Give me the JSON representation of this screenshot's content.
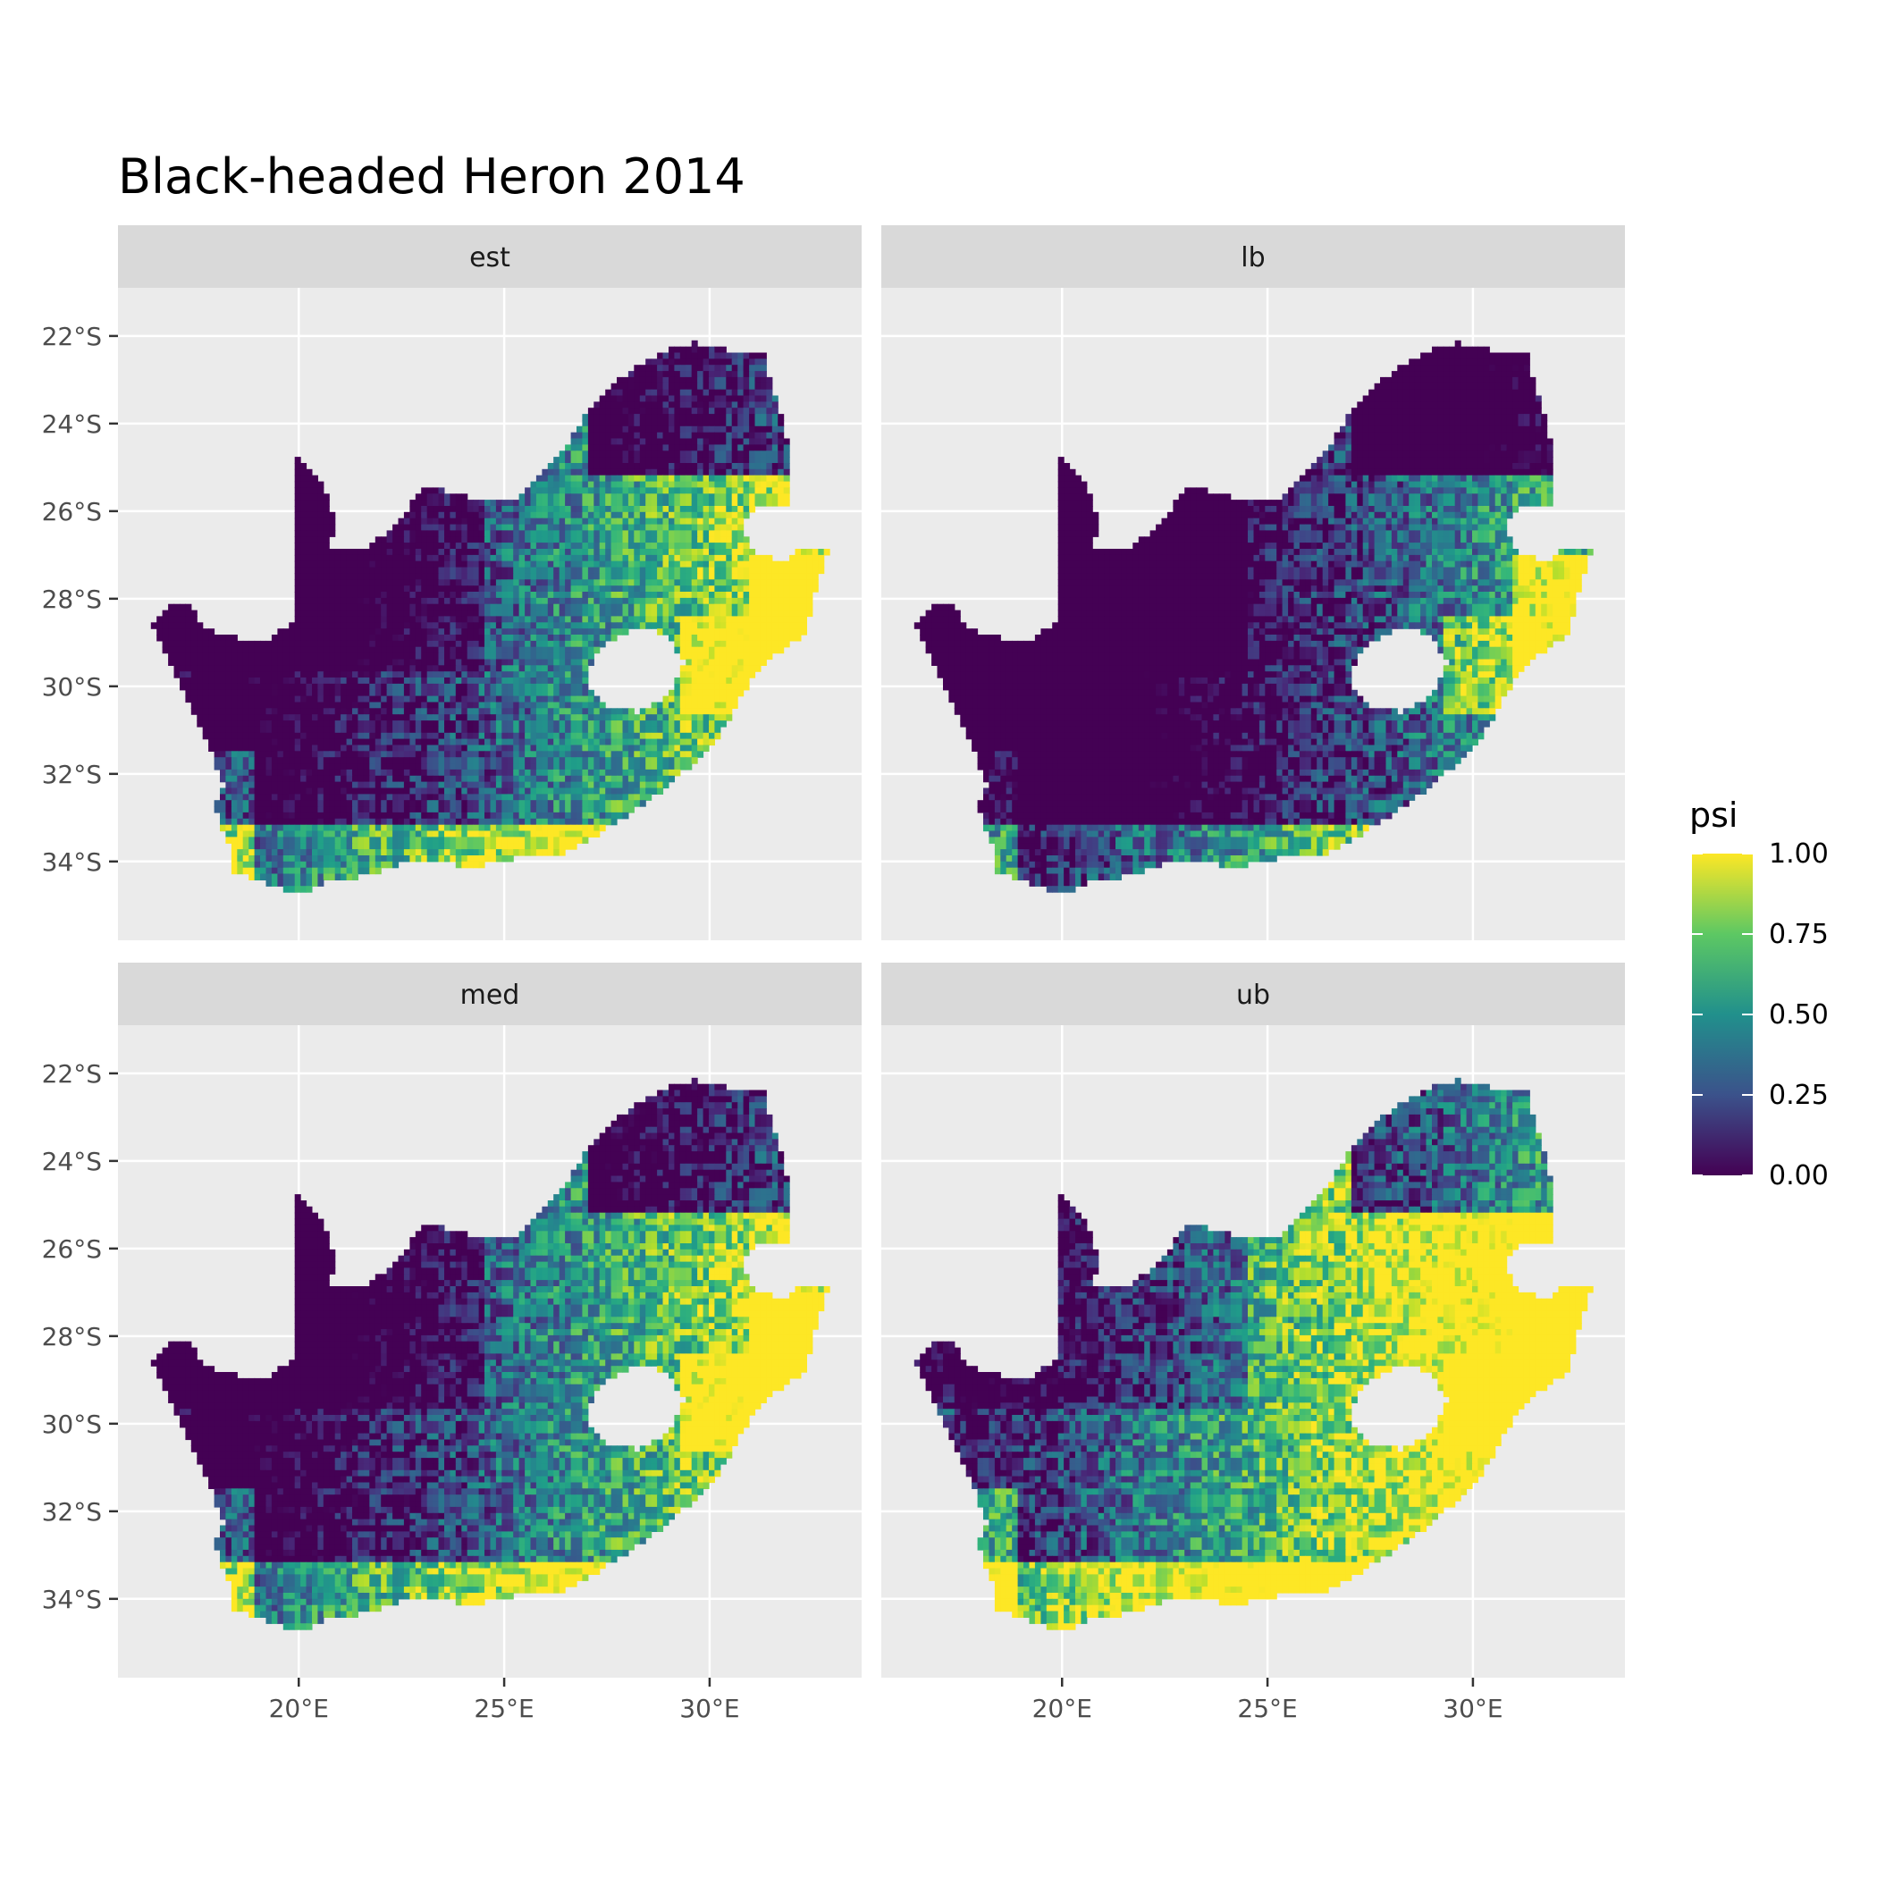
{
  "title": "Black-headed Heron 2014",
  "facets": [
    "est",
    "lb",
    "med",
    "ub"
  ],
  "axes": {
    "lat_ticks": [
      "22°S",
      "24°S",
      "26°S",
      "28°S",
      "30°S",
      "32°S",
      "34°S"
    ],
    "lat_values": [
      -22,
      -24,
      -26,
      -28,
      -30,
      -32,
      -34
    ],
    "lon_ticks": [
      "20°E",
      "25°E",
      "30°E"
    ],
    "lon_values": [
      20,
      25,
      30
    ],
    "lon_range": [
      15.6,
      33.7
    ],
    "lat_range": [
      -35.8,
      -20.9
    ]
  },
  "legend": {
    "title": "psi",
    "ticks": [
      "1.00",
      "0.75",
      "0.50",
      "0.25",
      "0.00"
    ],
    "tick_values": [
      1.0,
      0.75,
      0.5,
      0.25,
      0.0
    ],
    "colors": [
      "#440154",
      "#3b528b",
      "#21908c",
      "#5dc863",
      "#fde725"
    ],
    "placement": "right"
  },
  "colors": {
    "panel_bg": "#ebebeb",
    "strip_bg": "#d9d9d9",
    "grid": "#ffffff",
    "tick_text": "#4d4d4d"
  },
  "chart_data": {
    "type": "heatmap",
    "variable": "psi",
    "value_range": [
      0,
      1
    ],
    "scale": "viridis",
    "panels": [
      {
        "name": "est",
        "summary": "low (purple) in west/northwest interior and far north; high (yellow) in east-central highveld, east coast and south-west coast"
      },
      {
        "name": "lb",
        "summary": "lower bound: mostly low in west and north; moderate-high only in east-central highveld and coastal strips"
      },
      {
        "name": "med",
        "summary": "similar to est"
      },
      {
        "name": "ub",
        "summary": "upper bound: high over the whole east and coasts; low only in northwest interior"
      }
    ]
  }
}
